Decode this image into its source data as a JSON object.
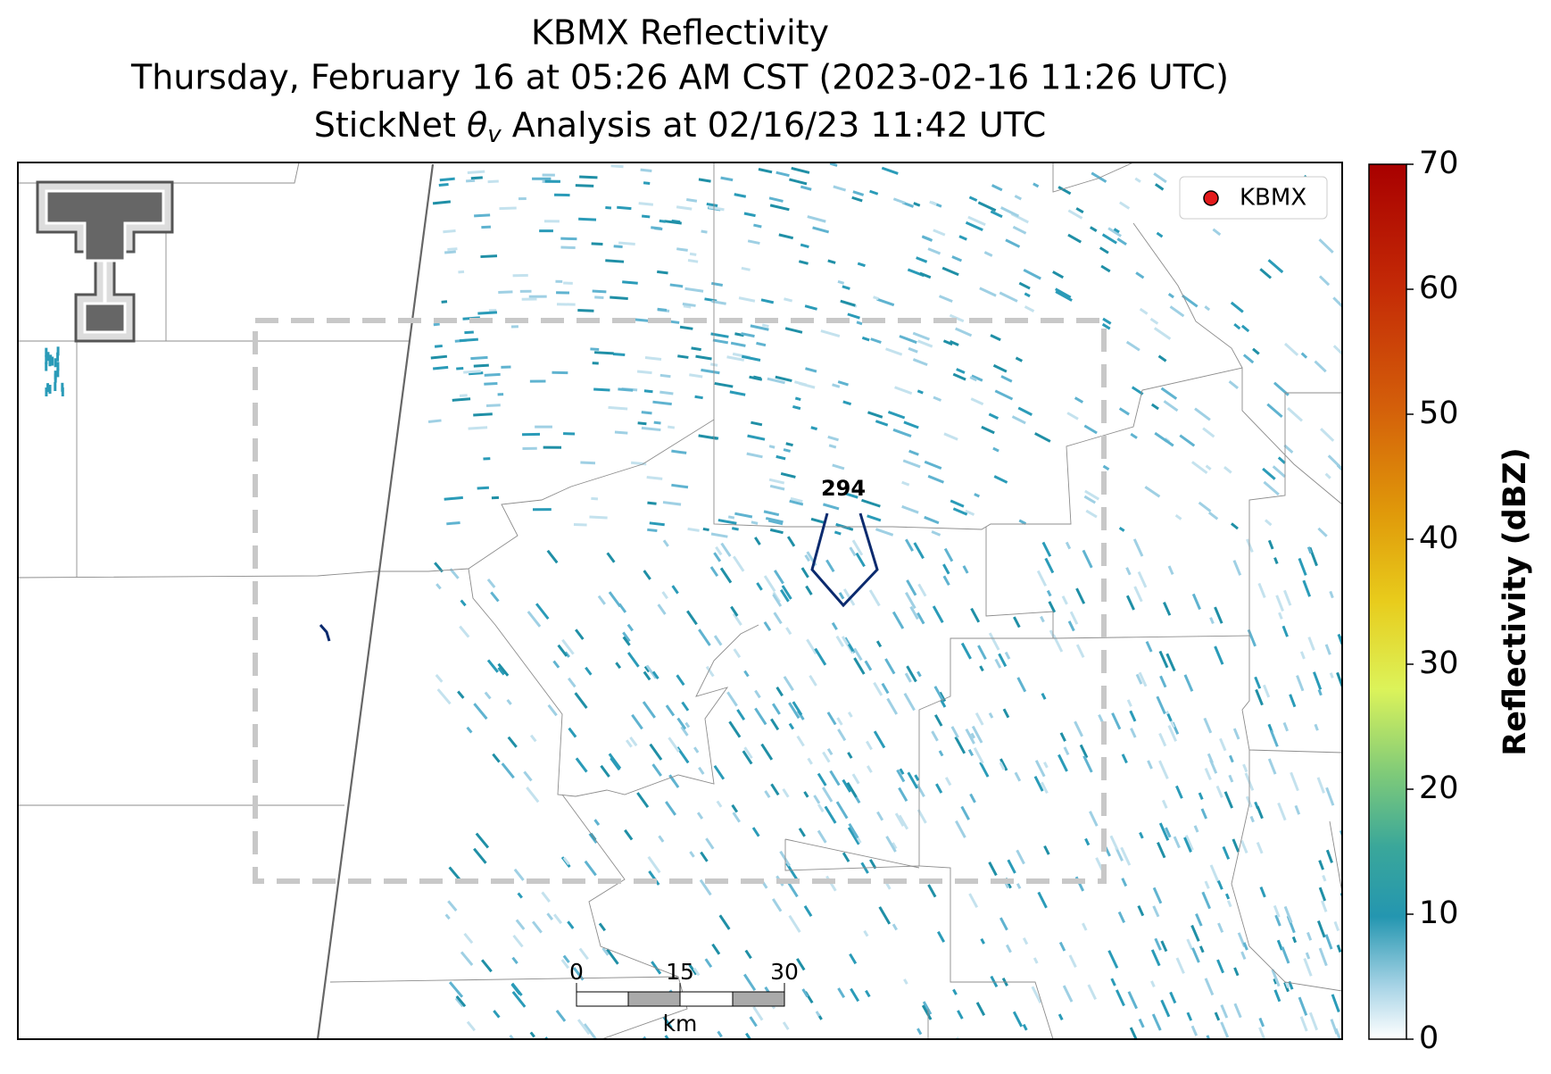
{
  "title": {
    "line1": "KBMX Reflectivity",
    "line2": "Thursday, February 16 at 05:26 AM CST (2023-02-16 11:26 UTC)",
    "line3": {
      "prefix": "StickNet",
      "symbol": "θ",
      "subscript": "v",
      "suffix": "Analysis at 02/16/23 11:42 UTC"
    }
  },
  "legend": {
    "label": "KBMX",
    "color": "#e31a1c"
  },
  "contour": {
    "label": "294",
    "color": "#0b2a6e"
  },
  "scale_bar": {
    "ticks": [
      "0",
      "15",
      "30"
    ],
    "unit": "km"
  },
  "colorbar": {
    "label": "Reflectivity (dBZ)",
    "lim": [
      0,
      70
    ],
    "ticks": [
      0,
      10,
      20,
      30,
      40,
      50,
      60,
      70
    ]
  }
}
